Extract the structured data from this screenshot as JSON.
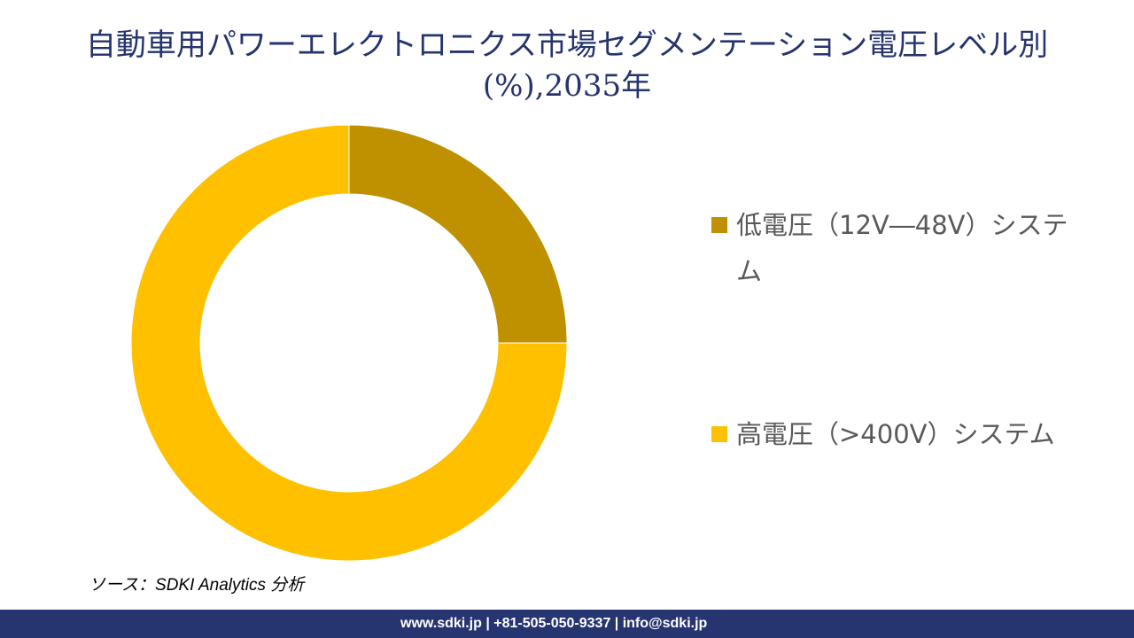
{
  "chart_data": {
    "type": "pie",
    "subtype": "donut",
    "title": "自動車用パワーエレクトロニクス市場セグメンテーション電圧レベル別(%),2035年",
    "categories": [
      "低電圧（12V―48V）システム",
      "高電圧（>400V）システム"
    ],
    "values": [
      25,
      75
    ],
    "unit": "%",
    "colors": [
      "#BF9000",
      "#FFC000"
    ],
    "legend": "right"
  },
  "source": "ソース：SDKI Analytics 分析",
  "footer": "www.sdki.jp | +81-505-050-9337 | info@sdki.jp"
}
